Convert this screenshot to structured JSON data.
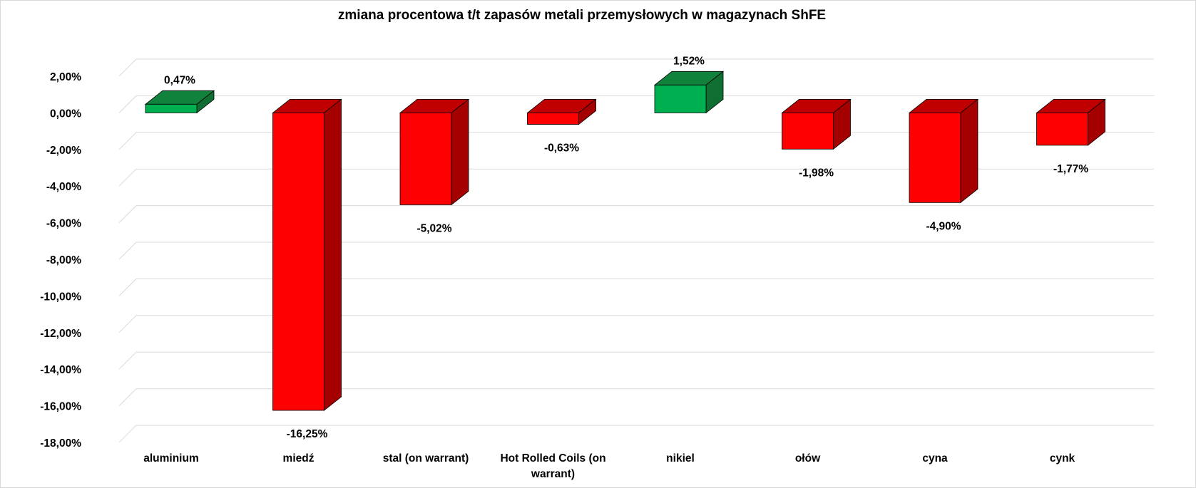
{
  "chart_data": {
    "type": "bar",
    "title": "zmiana procentowa t/t zapasów metali przemysłowych w magazynach ShFE",
    "categories": [
      "aluminium",
      "miedź",
      "stal (on warrant)",
      "Hot Rolled Coils (on warrant)",
      "nikiel",
      "ołów",
      "cyna",
      "cynk"
    ],
    "category_lines": [
      [
        "aluminium"
      ],
      [
        "miedź"
      ],
      [
        "stal (on warrant)"
      ],
      [
        "Hot Rolled Coils (on",
        "warrant)"
      ],
      [
        "nikiel"
      ],
      [
        "ołów"
      ],
      [
        "cyna"
      ],
      [
        "cynk"
      ]
    ],
    "values": [
      0.47,
      -16.25,
      -5.02,
      -0.63,
      1.52,
      -1.98,
      -4.9,
      -1.77
    ],
    "data_labels": [
      "0,47%",
      "-16,25%",
      "-5,02%",
      "-0,63%",
      "1,52%",
      "-1,98%",
      "-4,90%",
      "-1,77%"
    ],
    "ylim": [
      -18,
      2
    ],
    "yticks": [
      2,
      0,
      -2,
      -4,
      -6,
      -8,
      -10,
      -12,
      -14,
      -16,
      -18
    ],
    "ytick_labels": [
      "2,00%",
      "0,00%",
      "-2,00%",
      "-4,00%",
      "-6,00%",
      "-8,00%",
      "-10,00%",
      "-12,00%",
      "-14,00%",
      "-16,00%",
      "-18,00%"
    ],
    "style": "3d-column",
    "grid": true,
    "legend": "none",
    "colors": {
      "positive_front": "#00b050",
      "positive_top": "#11823b",
      "positive_side": "#0f6e32",
      "negative_front": "#ff0000",
      "negative_top": "#c00000",
      "negative_side": "#a50000",
      "grid": "#d9d9d9"
    }
  }
}
